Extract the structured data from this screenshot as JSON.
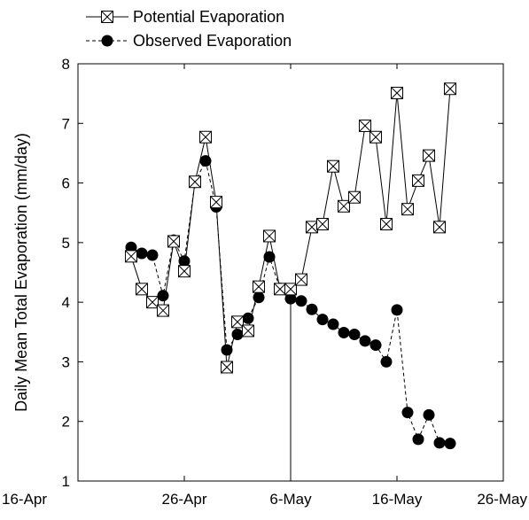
{
  "chart_data": {
    "type": "line",
    "title": "",
    "xlabel": "",
    "ylabel": "Daily Mean Total Evaporation (mm/day)",
    "xlim": [
      "2000-04-16",
      "2000-05-26"
    ],
    "ylim": [
      1,
      8
    ],
    "x_ticks": [
      "16-Apr",
      "26-Apr",
      "6-May",
      "16-May",
      "26-May"
    ],
    "y_ticks": [
      "1",
      "2",
      "3",
      "4",
      "5",
      "6",
      "7",
      "8"
    ],
    "grid": false,
    "legend_position": "top-left",
    "reference_line_date": "2000-05-06",
    "series": [
      {
        "name": "Potential Evaporation",
        "marker": "boxed-x",
        "line": "solid",
        "points": [
          {
            "date": "2000-04-21",
            "y": 4.77
          },
          {
            "date": "2000-04-22",
            "y": 4.22
          },
          {
            "date": "2000-04-23",
            "y": 4.0
          },
          {
            "date": "2000-04-24",
            "y": 3.86
          },
          {
            "date": "2000-04-25",
            "y": 5.02
          },
          {
            "date": "2000-04-26",
            "y": 4.52
          },
          {
            "date": "2000-04-27",
            "y": 6.02
          },
          {
            "date": "2000-04-28",
            "y": 6.77
          },
          {
            "date": "2000-04-29",
            "y": 5.68
          },
          {
            "date": "2000-04-30",
            "y": 2.91
          },
          {
            "date": "2000-05-01",
            "y": 3.67
          },
          {
            "date": "2000-05-02",
            "y": 3.52
          },
          {
            "date": "2000-05-03",
            "y": 4.26
          },
          {
            "date": "2000-05-04",
            "y": 5.11
          },
          {
            "date": "2000-05-05",
            "y": 4.22
          },
          {
            "date": "2000-05-06",
            "y": 4.22
          },
          {
            "date": "2000-05-07",
            "y": 4.38
          },
          {
            "date": "2000-05-08",
            "y": 5.26
          },
          {
            "date": "2000-05-09",
            "y": 5.31
          },
          {
            "date": "2000-05-10",
            "y": 6.28
          },
          {
            "date": "2000-05-11",
            "y": 5.61
          },
          {
            "date": "2000-05-12",
            "y": 5.76
          },
          {
            "date": "2000-05-13",
            "y": 6.96
          },
          {
            "date": "2000-05-14",
            "y": 6.77
          },
          {
            "date": "2000-05-15",
            "y": 5.31
          },
          {
            "date": "2000-05-16",
            "y": 7.51
          },
          {
            "date": "2000-05-17",
            "y": 5.56
          },
          {
            "date": "2000-05-18",
            "y": 6.04
          },
          {
            "date": "2000-05-19",
            "y": 6.46
          },
          {
            "date": "2000-05-20",
            "y": 5.26
          },
          {
            "date": "2000-05-21",
            "y": 7.58
          }
        ]
      },
      {
        "name": "Observed Evaporation",
        "marker": "filled-circle",
        "line": "dashed",
        "points": [
          {
            "date": "2000-04-21",
            "y": 4.92
          },
          {
            "date": "2000-04-22",
            "y": 4.82
          },
          {
            "date": "2000-04-23",
            "y": 4.79
          },
          {
            "date": "2000-04-24",
            "y": 4.11
          },
          {
            "date": "2000-04-25",
            "y": 5.04
          },
          {
            "date": "2000-04-26",
            "y": 4.69
          },
          {
            "date": "2000-04-27",
            "y": 6.01
          },
          {
            "date": "2000-04-28",
            "y": 6.37
          },
          {
            "date": "2000-04-29",
            "y": 5.6
          },
          {
            "date": "2000-04-30",
            "y": 3.2
          },
          {
            "date": "2000-05-01",
            "y": 3.46
          },
          {
            "date": "2000-05-02",
            "y": 3.73
          },
          {
            "date": "2000-05-03",
            "y": 4.08
          },
          {
            "date": "2000-05-04",
            "y": 4.76
          },
          {
            "date": "2000-05-05",
            "y": 4.23
          },
          {
            "date": "2000-05-06",
            "y": 4.06
          },
          {
            "date": "2000-05-07",
            "y": 4.02
          },
          {
            "date": "2000-05-08",
            "y": 3.88
          },
          {
            "date": "2000-05-09",
            "y": 3.71
          },
          {
            "date": "2000-05-10",
            "y": 3.63
          },
          {
            "date": "2000-05-11",
            "y": 3.49
          },
          {
            "date": "2000-05-12",
            "y": 3.46
          },
          {
            "date": "2000-05-13",
            "y": 3.35
          },
          {
            "date": "2000-05-14",
            "y": 3.28
          },
          {
            "date": "2000-05-15",
            "y": 3.0
          },
          {
            "date": "2000-05-16",
            "y": 3.87
          },
          {
            "date": "2000-05-17",
            "y": 2.15
          },
          {
            "date": "2000-05-18",
            "y": 1.7
          },
          {
            "date": "2000-05-19",
            "y": 2.11
          },
          {
            "date": "2000-05-20",
            "y": 1.64
          },
          {
            "date": "2000-05-21",
            "y": 1.63
          }
        ]
      }
    ]
  }
}
